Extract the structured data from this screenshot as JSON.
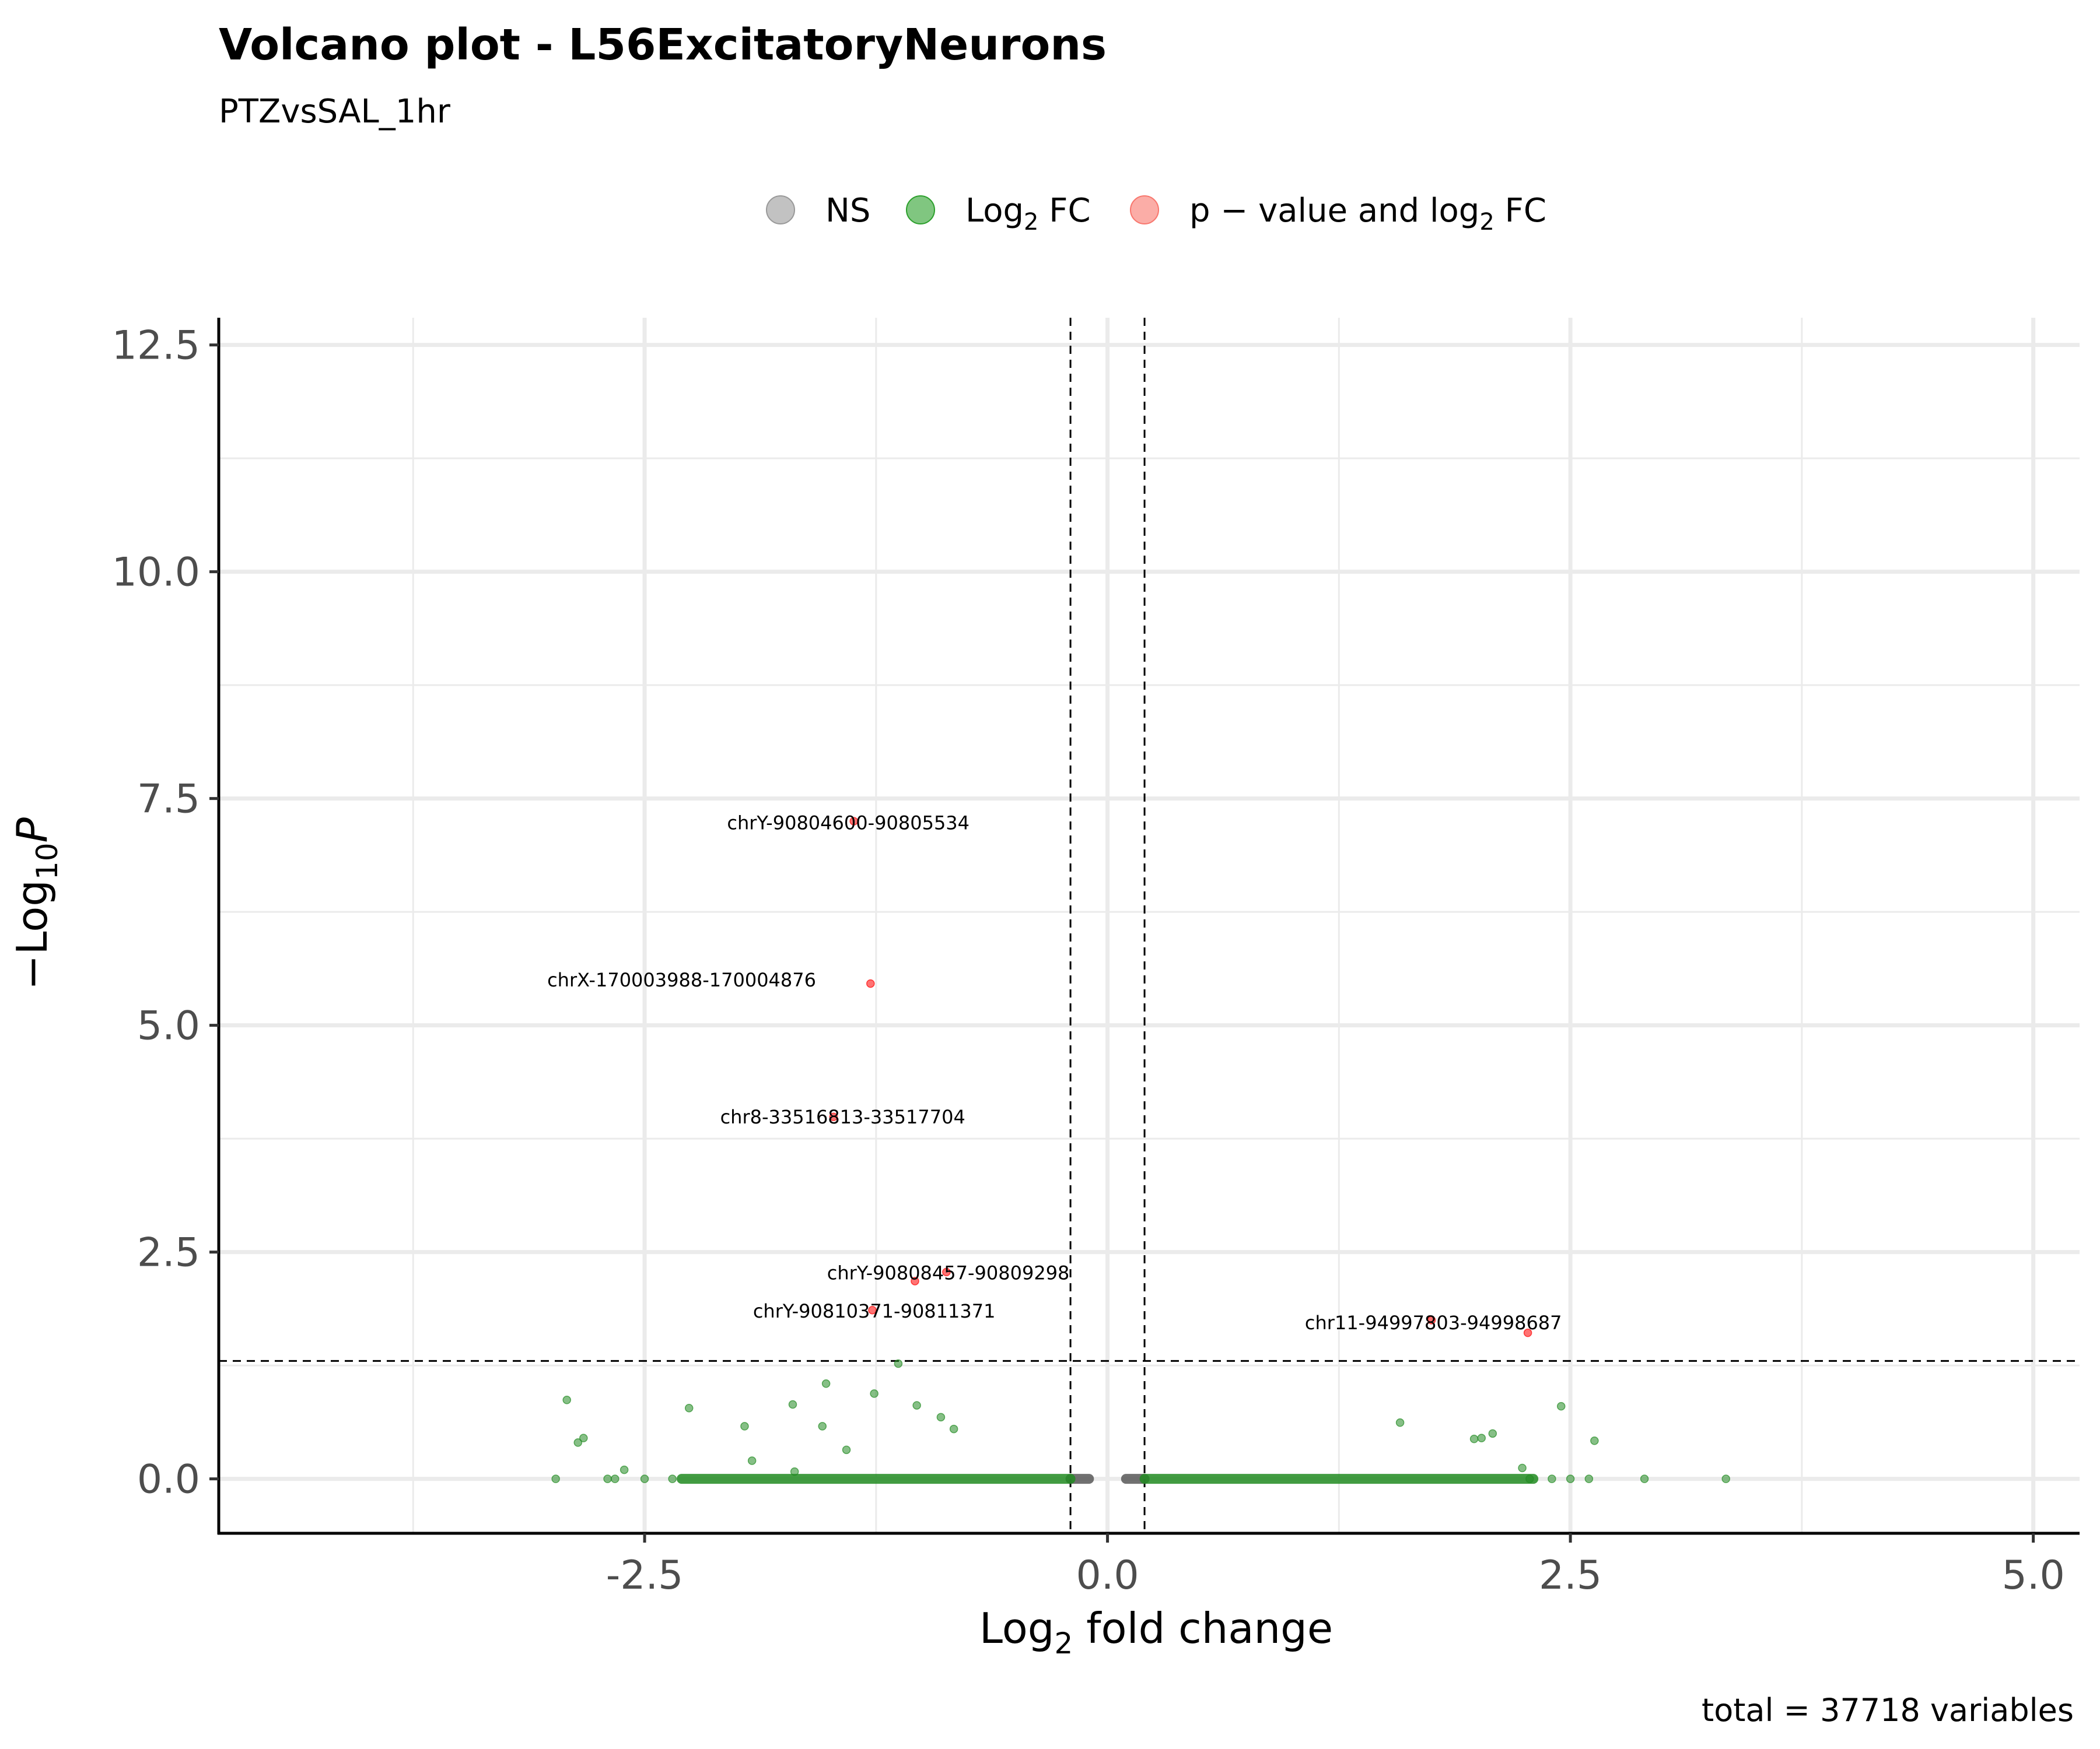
{
  "chart_data": {
    "type": "scatter",
    "title": "Volcano plot - L56ExcitatoryNeurons",
    "subtitle": "PTZvsSAL_1hr",
    "caption": "total = 37718 variables",
    "xlabel": {
      "main": "Log",
      "sub": "2",
      "rest": " fold change"
    },
    "ylabel": {
      "pre": "−Log",
      "sub": "10",
      "italic": "P"
    },
    "xlim": [
      -4.8,
      5.25
    ],
    "ylim": [
      -0.6,
      12.8
    ],
    "x_ticks": [
      {
        "value": -2.5,
        "label": "-2.5"
      },
      {
        "value": 0.0,
        "label": "0.0"
      },
      {
        "value": 2.5,
        "label": "2.5"
      },
      {
        "value": 5.0,
        "label": "5.0"
      }
    ],
    "y_ticks": [
      {
        "value": 0.0,
        "label": "0.0"
      },
      {
        "value": 2.5,
        "label": "2.5"
      },
      {
        "value": 5.0,
        "label": "5.0"
      },
      {
        "value": 7.5,
        "label": "7.5"
      },
      {
        "value": 10.0,
        "label": "10.0"
      },
      {
        "value": 12.5,
        "label": "12.5"
      }
    ],
    "grid": true,
    "cutoffs": {
      "fc": [
        -0.2,
        0.2
      ],
      "p": 1.3
    },
    "legend": {
      "position": "top",
      "items": [
        {
          "key": "ns",
          "label": "NS",
          "color": "#999999"
        },
        {
          "key": "fc",
          "label": {
            "main": "Log",
            "sub": "2",
            "rest": " FC"
          },
          "color": "#2ca02c"
        },
        {
          "key": "pfc",
          "label": {
            "pre": "p",
            "mid": " − ",
            "rest": "value and log",
            "sub": "2",
            "tail": " FC"
          },
          "color": "#f8766d"
        }
      ]
    },
    "colors": {
      "ns": "#595959",
      "fc": "#228b22",
      "pfc": "#ff0000"
    },
    "series": [
      {
        "key": "ns",
        "segments": [
          [
            -0.2,
            -0.1,
            0.0
          ],
          [
            0.1,
            0.2,
            0.0
          ]
        ],
        "points": []
      },
      {
        "key": "fc",
        "segments": [
          [
            -2.3,
            -0.2,
            0.0
          ],
          [
            0.2,
            2.3,
            0.0
          ]
        ],
        "points": [
          [
            -2.92,
            0.87
          ],
          [
            -2.86,
            0.4
          ],
          [
            -2.83,
            0.45
          ],
          [
            -2.26,
            0.78
          ],
          [
            -1.96,
            0.58
          ],
          [
            -1.92,
            0.2
          ],
          [
            -1.69,
            0.08
          ],
          [
            -1.7,
            0.82
          ],
          [
            -1.54,
            0.58
          ],
          [
            -1.52,
            1.05
          ],
          [
            -1.41,
            0.32
          ],
          [
            -1.26,
            0.94
          ],
          [
            -1.13,
            1.27
          ],
          [
            -1.03,
            0.81
          ],
          [
            -0.9,
            0.68
          ],
          [
            -0.83,
            0.55
          ],
          [
            -2.98,
            0.0
          ],
          [
            -2.7,
            0.0
          ],
          [
            -2.66,
            0.0
          ],
          [
            -2.61,
            0.1
          ],
          [
            -2.5,
            0.0
          ],
          [
            -2.35,
            0.0
          ],
          [
            1.58,
            0.62
          ],
          [
            1.98,
            0.44
          ],
          [
            2.02,
            0.45
          ],
          [
            2.08,
            0.5
          ],
          [
            2.24,
            0.12
          ],
          [
            2.28,
            0.0
          ],
          [
            2.4,
            0.0
          ],
          [
            2.45,
            0.8
          ],
          [
            2.5,
            0.0
          ],
          [
            2.6,
            0.0
          ],
          [
            2.63,
            0.42
          ],
          [
            2.9,
            0.0
          ],
          [
            3.34,
            0.0
          ]
        ]
      },
      {
        "key": "pfc",
        "segments": [],
        "points": [
          [
            -1.37,
            7.25
          ],
          [
            -1.28,
            5.46
          ],
          [
            -1.48,
            3.99
          ],
          [
            -1.04,
            2.18
          ],
          [
            -0.87,
            2.28
          ],
          [
            -1.27,
            1.86
          ],
          [
            1.75,
            1.75
          ],
          [
            2.27,
            1.61
          ]
        ]
      }
    ],
    "point_labels": [
      {
        "text": "chrY-90804600-90805534",
        "x": -1.4,
        "y": 7.23
      },
      {
        "text": "chrX-170003988-170004876",
        "x": -2.3,
        "y": 5.5
      },
      {
        "text": "chr8-33516813-33517704",
        "x": -1.43,
        "y": 3.99
      },
      {
        "text": "chrY-90808457-90809298",
        "x": -0.86,
        "y": 2.27
      },
      {
        "text": "chrY-90810371-90811371",
        "x": -1.26,
        "y": 1.85
      },
      {
        "text": "chr11-94997803-94998687",
        "x": 1.76,
        "y": 1.72
      }
    ]
  }
}
